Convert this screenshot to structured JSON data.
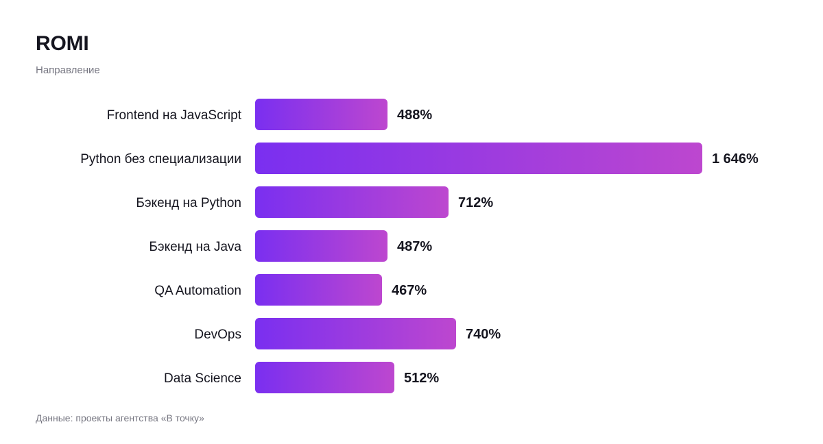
{
  "header": {
    "title": "ROMI",
    "subtitle": "Направление"
  },
  "footer": {
    "source": "Данные: проекты агентства «В точку»"
  },
  "colors": {
    "bar_start": "#7a2ff0",
    "bar_end": "#bd47cf",
    "text": "#15151f",
    "muted": "#777782"
  },
  "chart_data": {
    "type": "bar",
    "orientation": "horizontal",
    "title": "ROMI",
    "xlabel": "",
    "ylabel": "Направление",
    "grid": false,
    "legend": "none",
    "xlim": [
      0,
      1646
    ],
    "categories": [
      "Frontend на JavaScript",
      "Python без специализации",
      "Бэкенд на Python",
      "Бэкенд на Java",
      "QA Automation",
      "DevOps",
      "Data Science"
    ],
    "values": [
      488,
      1646,
      712,
      487,
      467,
      740,
      512
    ],
    "value_labels": [
      "488%",
      "1 646%",
      "712%",
      "487%",
      "467%",
      "740%",
      "512%"
    ],
    "unit": "%"
  }
}
